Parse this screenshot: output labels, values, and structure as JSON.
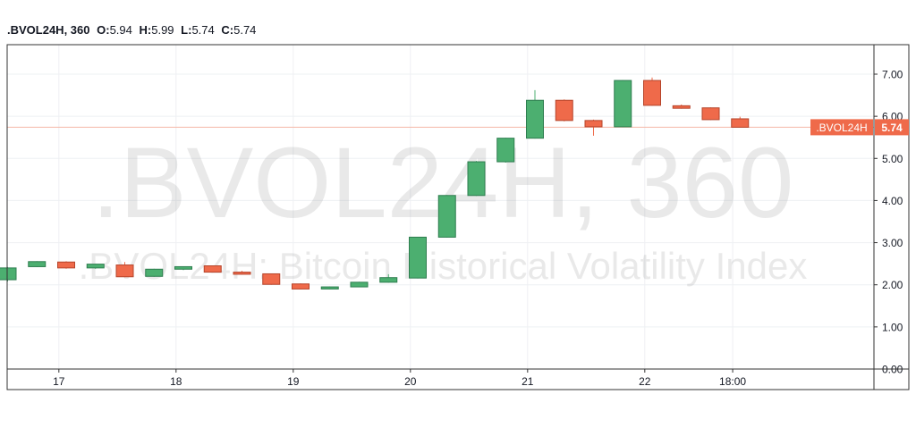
{
  "legend": {
    "symbol": ".BVOL24H, 360",
    "o_label": "O:",
    "o": "5.94",
    "h_label": "H:",
    "h": "5.99",
    "l_label": "L:",
    "l": "5.74",
    "c_label": "C:",
    "c": "5.74"
  },
  "watermark": {
    "line1": ".BVOL24H, 360",
    "line2": ".BVOL24H: Bitcoin Historical Volatility Index"
  },
  "price_tag": {
    "name": ".BVOL24H",
    "value": "5.74"
  },
  "colors": {
    "up": "#4CAF70",
    "down": "#EF6A4A",
    "last_line": "#F5B8A8",
    "grid": "#EEF0F3",
    "axis": "#333333",
    "watermark": "rgba(120,120,120,0.16)"
  },
  "chart_data": {
    "type": "candlestick",
    "ylim": [
      0,
      7.7
    ],
    "y_ticks": [
      0.0,
      1.0,
      2.0,
      3.0,
      4.0,
      5.0,
      6.0,
      7.0
    ],
    "y_tick_labels": [
      "0.00",
      "1.00",
      "2.00",
      "3.00",
      "4.00",
      "5.00",
      "6.00",
      "7.00"
    ],
    "x_ticks": [
      {
        "label": "17",
        "i": 1.75
      },
      {
        "label": "18",
        "i": 5.75
      },
      {
        "label": "19",
        "i": 9.75
      },
      {
        "label": "20",
        "i": 13.75
      },
      {
        "label": "21",
        "i": 17.75
      },
      {
        "label": "22",
        "i": 21.75
      },
      {
        "label": "18:00",
        "i": 24.75
      }
    ],
    "last_value": 5.74,
    "candles": [
      {
        "o": 2.12,
        "h": 2.42,
        "l": 2.08,
        "c": 2.4
      },
      {
        "o": 2.43,
        "h": 2.56,
        "l": 2.42,
        "c": 2.55
      },
      {
        "o": 2.54,
        "h": 2.56,
        "l": 2.38,
        "c": 2.4
      },
      {
        "o": 2.4,
        "h": 2.5,
        "l": 2.38,
        "c": 2.49
      },
      {
        "o": 2.47,
        "h": 2.54,
        "l": 2.18,
        "c": 2.19
      },
      {
        "o": 2.2,
        "h": 2.38,
        "l": 2.19,
        "c": 2.37
      },
      {
        "o": 2.37,
        "h": 2.44,
        "l": 2.35,
        "c": 2.43
      },
      {
        "o": 2.45,
        "h": 2.46,
        "l": 2.29,
        "c": 2.3
      },
      {
        "o": 2.3,
        "h": 2.33,
        "l": 2.24,
        "c": 2.25
      },
      {
        "o": 2.26,
        "h": 2.27,
        "l": 2.0,
        "c": 2.01
      },
      {
        "o": 2.02,
        "h": 2.03,
        "l": 1.89,
        "c": 1.9
      },
      {
        "o": 1.9,
        "h": 1.96,
        "l": 1.89,
        "c": 1.95
      },
      {
        "o": 1.95,
        "h": 2.07,
        "l": 1.94,
        "c": 2.06
      },
      {
        "o": 2.06,
        "h": 2.25,
        "l": 2.05,
        "c": 2.17
      },
      {
        "o": 2.16,
        "h": 3.13,
        "l": 2.15,
        "c": 3.13
      },
      {
        "o": 3.13,
        "h": 4.13,
        "l": 3.12,
        "c": 4.12
      },
      {
        "o": 4.12,
        "h": 4.94,
        "l": 4.11,
        "c": 4.92
      },
      {
        "o": 4.92,
        "h": 5.49,
        "l": 4.9,
        "c": 5.48
      },
      {
        "o": 5.48,
        "h": 6.62,
        "l": 5.47,
        "c": 6.38
      },
      {
        "o": 6.38,
        "h": 6.4,
        "l": 5.88,
        "c": 5.9
      },
      {
        "o": 5.9,
        "h": 5.92,
        "l": 5.54,
        "c": 5.75
      },
      {
        "o": 5.75,
        "h": 6.86,
        "l": 5.74,
        "c": 6.85
      },
      {
        "o": 6.85,
        "h": 6.92,
        "l": 6.25,
        "c": 6.26
      },
      {
        "o": 6.25,
        "h": 6.28,
        "l": 6.18,
        "c": 6.19
      },
      {
        "o": 6.2,
        "h": 6.21,
        "l": 5.91,
        "c": 5.92
      },
      {
        "o": 5.94,
        "h": 5.99,
        "l": 5.74,
        "c": 5.74
      }
    ]
  }
}
